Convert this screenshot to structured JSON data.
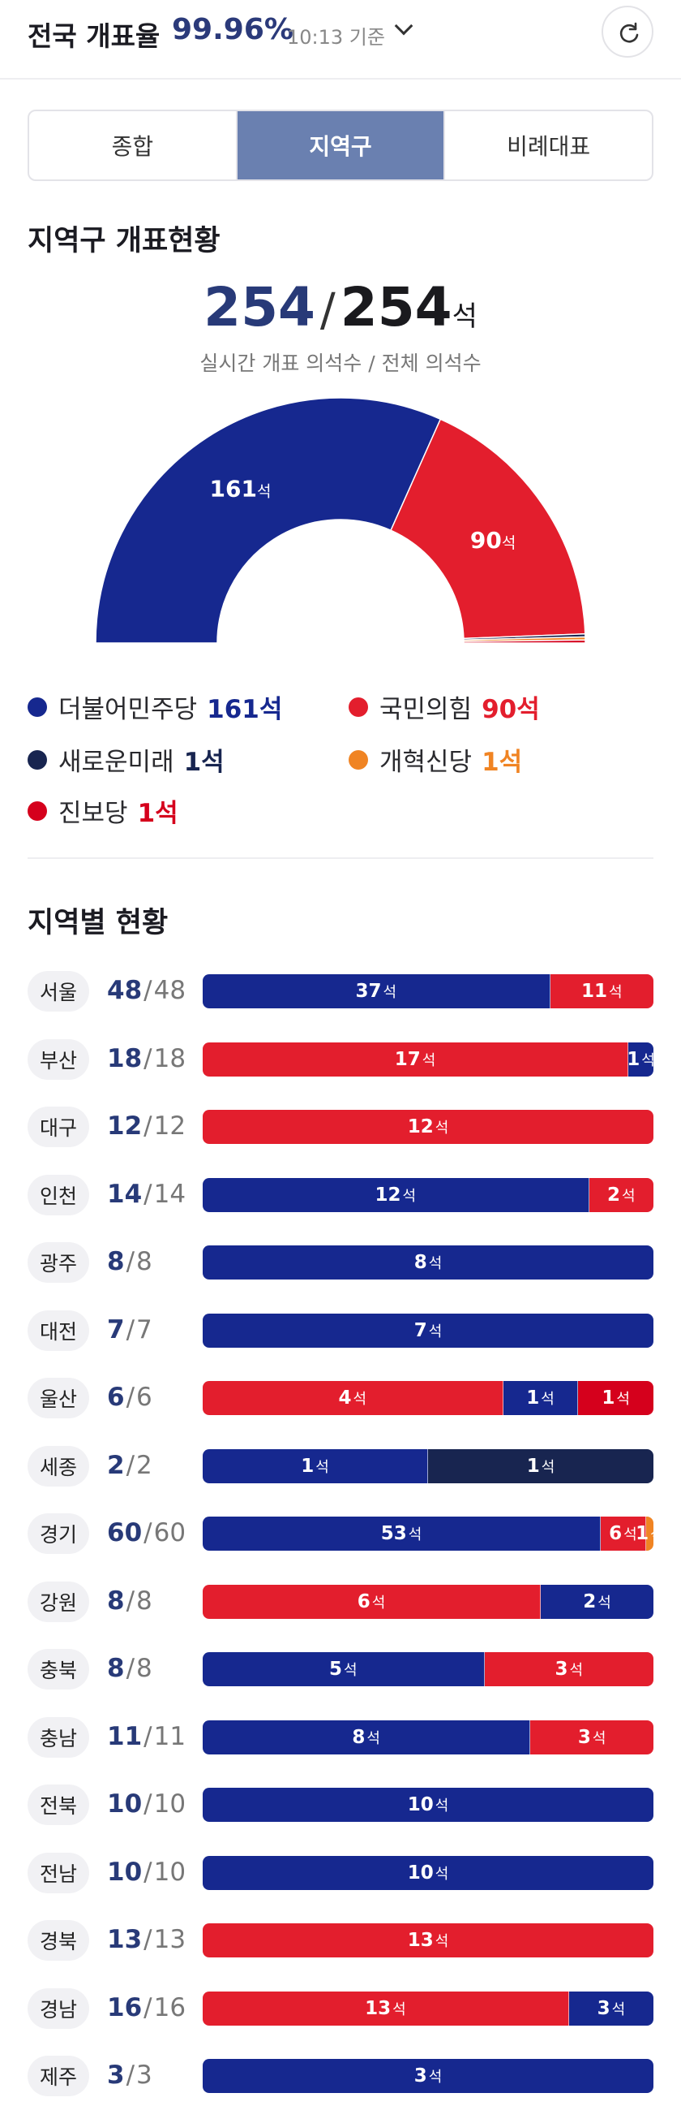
{
  "header": {
    "title": "전국 개표율",
    "rate": "99.96%",
    "time": "10:13 기준"
  },
  "tabs": [
    {
      "label": "종합",
      "active": false
    },
    {
      "label": "지역구",
      "active": true
    },
    {
      "label": "비례대표",
      "active": false
    }
  ],
  "overview": {
    "title": "지역구 개표현황",
    "live": "254",
    "total": "254",
    "unit": "석",
    "subtitle": "실시간 개표 의석수 / 전체 의석수"
  },
  "colors": {
    "minjoo": "#16288f",
    "ppp": "#e31e2d",
    "saerowoon": "#182550",
    "gaehyuk": "#f08423",
    "jinbo": "#d5001c"
  },
  "chart_data": {
    "type": "pie",
    "shape": "half-donut",
    "categories": [
      "더불어민주당",
      "국민의힘",
      "새로운미래",
      "개혁신당",
      "진보당"
    ],
    "values": [
      161,
      90,
      1,
      1,
      1
    ],
    "labels": [
      "161석",
      "90석",
      "",
      "",
      ""
    ]
  },
  "legend": [
    {
      "name": "더불어민주당",
      "seats": "161석",
      "color": "#16288f",
      "seat_color": "#16288f"
    },
    {
      "name": "국민의힘",
      "seats": "90석",
      "color": "#e31e2d",
      "seat_color": "#e31e2d"
    },
    {
      "name": "새로운미래",
      "seats": "1석",
      "color": "#182550",
      "seat_color": "#182550"
    },
    {
      "name": "개혁신당",
      "seats": "1석",
      "color": "#f08423",
      "seat_color": "#f08423"
    },
    {
      "name": "진보당",
      "seats": "1석",
      "color": "#d5001c",
      "seat_color": "#d5001c"
    }
  ],
  "regions": {
    "title": "지역별 현황",
    "rows": [
      {
        "name": "서울",
        "done": "48",
        "total": "48",
        "segs": [
          {
            "party": "minjoo",
            "seats": 37
          },
          {
            "party": "ppp",
            "seats": 11
          }
        ]
      },
      {
        "name": "부산",
        "done": "18",
        "total": "18",
        "segs": [
          {
            "party": "ppp",
            "seats": 17
          },
          {
            "party": "minjoo",
            "seats": 1
          }
        ]
      },
      {
        "name": "대구",
        "done": "12",
        "total": "12",
        "segs": [
          {
            "party": "ppp",
            "seats": 12
          }
        ]
      },
      {
        "name": "인천",
        "done": "14",
        "total": "14",
        "segs": [
          {
            "party": "minjoo",
            "seats": 12
          },
          {
            "party": "ppp",
            "seats": 2
          }
        ]
      },
      {
        "name": "광주",
        "done": "8",
        "total": "8",
        "segs": [
          {
            "party": "minjoo",
            "seats": 8
          }
        ]
      },
      {
        "name": "대전",
        "done": "7",
        "total": "7",
        "segs": [
          {
            "party": "minjoo",
            "seats": 7
          }
        ]
      },
      {
        "name": "울산",
        "done": "6",
        "total": "6",
        "segs": [
          {
            "party": "ppp",
            "seats": 4
          },
          {
            "party": "minjoo",
            "seats": 1
          },
          {
            "party": "jinbo",
            "seats": 1
          }
        ]
      },
      {
        "name": "세종",
        "done": "2",
        "total": "2",
        "segs": [
          {
            "party": "minjoo",
            "seats": 1
          },
          {
            "party": "saerowoon",
            "seats": 1
          }
        ]
      },
      {
        "name": "경기",
        "done": "60",
        "total": "60",
        "segs": [
          {
            "party": "minjoo",
            "seats": 53
          },
          {
            "party": "ppp",
            "seats": 6
          },
          {
            "party": "gaehyuk",
            "seats": 1
          }
        ]
      },
      {
        "name": "강원",
        "done": "8",
        "total": "8",
        "segs": [
          {
            "party": "ppp",
            "seats": 6
          },
          {
            "party": "minjoo",
            "seats": 2
          }
        ]
      },
      {
        "name": "충북",
        "done": "8",
        "total": "8",
        "segs": [
          {
            "party": "minjoo",
            "seats": 5
          },
          {
            "party": "ppp",
            "seats": 3
          }
        ]
      },
      {
        "name": "충남",
        "done": "11",
        "total": "11",
        "segs": [
          {
            "party": "minjoo",
            "seats": 8
          },
          {
            "party": "ppp",
            "seats": 3
          }
        ]
      },
      {
        "name": "전북",
        "done": "10",
        "total": "10",
        "segs": [
          {
            "party": "minjoo",
            "seats": 10
          }
        ]
      },
      {
        "name": "전남",
        "done": "10",
        "total": "10",
        "segs": [
          {
            "party": "minjoo",
            "seats": 10
          }
        ]
      },
      {
        "name": "경북",
        "done": "13",
        "total": "13",
        "segs": [
          {
            "party": "ppp",
            "seats": 13
          }
        ]
      },
      {
        "name": "경남",
        "done": "16",
        "total": "16",
        "segs": [
          {
            "party": "ppp",
            "seats": 13
          },
          {
            "party": "minjoo",
            "seats": 3
          }
        ]
      },
      {
        "name": "제주",
        "done": "3",
        "total": "3",
        "segs": [
          {
            "party": "minjoo",
            "seats": 3
          }
        ]
      }
    ]
  }
}
